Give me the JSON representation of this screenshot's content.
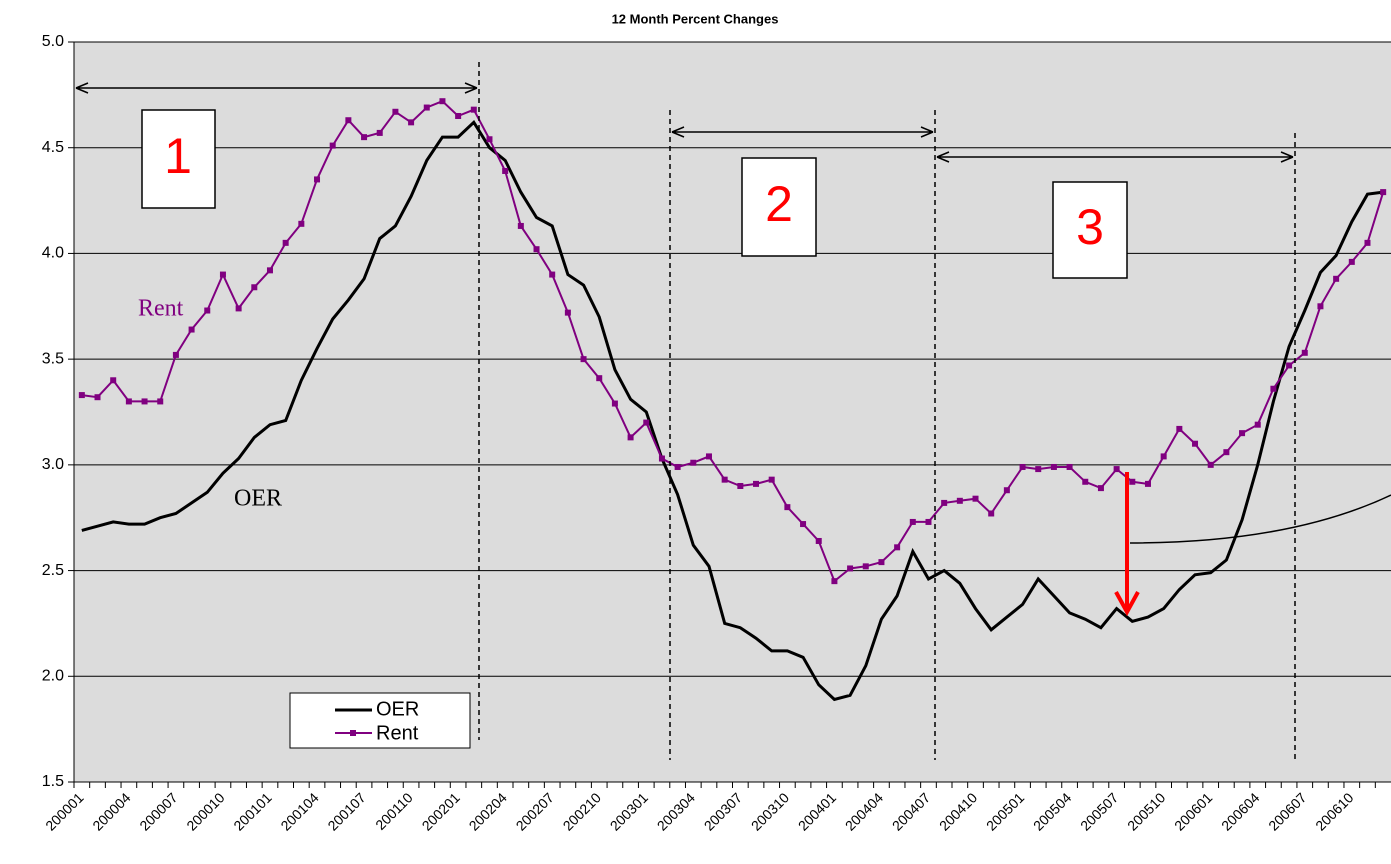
{
  "chart_data": {
    "type": "line",
    "title": "12 Month Percent Changes",
    "categories": [
      "200001",
      null,
      null,
      "200004",
      null,
      null,
      "200007",
      null,
      null,
      "200010",
      null,
      null,
      "200101",
      null,
      null,
      "200104",
      null,
      null,
      "200107",
      null,
      null,
      "200110",
      null,
      null,
      "200201",
      null,
      null,
      "200204",
      null,
      null,
      "200207",
      null,
      null,
      "200210",
      null,
      null,
      "200301",
      null,
      null,
      "200304",
      null,
      null,
      "200307",
      null,
      null,
      "200310",
      null,
      null,
      "200401",
      null,
      null,
      "200404",
      null,
      null,
      "200407",
      null,
      null,
      "200410",
      null,
      null,
      "200501",
      null,
      null,
      "200504",
      null,
      null,
      "200507",
      null,
      null,
      "200510",
      null,
      null,
      "200601",
      null,
      null,
      "200604",
      null,
      null,
      "200607",
      null,
      null,
      "200610",
      null,
      null
    ],
    "series": [
      {
        "name": "OER",
        "color": "#000000",
        "values": [
          2.69,
          2.71,
          2.73,
          2.72,
          2.72,
          2.75,
          2.77,
          2.82,
          2.87,
          2.96,
          3.03,
          3.13,
          3.19,
          3.21,
          3.4,
          3.55,
          3.69,
          3.78,
          3.88,
          4.07,
          4.13,
          4.27,
          4.44,
          4.55,
          4.55,
          4.62,
          4.5,
          4.44,
          4.29,
          4.17,
          4.13,
          3.9,
          3.85,
          3.7,
          3.45,
          3.31,
          3.25,
          3.03,
          2.86,
          2.62,
          2.52,
          2.25,
          2.23,
          2.18,
          2.12,
          2.12,
          2.09,
          1.96,
          1.89,
          1.91,
          2.05,
          2.27,
          2.38,
          2.59,
          2.46,
          2.5,
          2.44,
          2.32,
          2.22,
          2.28,
          2.34,
          2.46,
          2.38,
          2.3,
          2.27,
          2.23,
          2.32,
          2.26,
          2.28,
          2.32,
          2.41,
          2.48,
          2.49,
          2.55,
          2.74,
          3.0,
          3.3,
          3.56,
          3.73,
          3.91,
          3.99,
          4.15,
          4.28,
          4.29
        ]
      },
      {
        "name": "Rent",
        "color": "#800080",
        "values": [
          3.33,
          3.32,
          3.4,
          3.3,
          3.3,
          3.3,
          3.52,
          3.64,
          3.73,
          3.9,
          3.74,
          3.84,
          3.92,
          4.05,
          4.14,
          4.35,
          4.51,
          4.63,
          4.55,
          4.57,
          4.67,
          4.62,
          4.69,
          4.72,
          4.65,
          4.68,
          4.54,
          4.39,
          4.13,
          4.02,
          3.9,
          3.72,
          3.5,
          3.41,
          3.29,
          3.13,
          3.2,
          3.03,
          2.99,
          3.01,
          3.04,
          2.93,
          2.9,
          2.91,
          2.93,
          2.8,
          2.72,
          2.64,
          2.45,
          2.51,
          2.52,
          2.54,
          2.61,
          2.73,
          2.73,
          2.82,
          2.83,
          2.84,
          2.77,
          2.88,
          2.99,
          2.98,
          2.99,
          2.99,
          2.92,
          2.89,
          2.98,
          2.92,
          2.91,
          3.04,
          3.17,
          3.1,
          3.0,
          3.06,
          3.15,
          3.19,
          3.36,
          3.47,
          3.53,
          3.75,
          3.88,
          3.96,
          4.05,
          4.29
        ]
      }
    ],
    "ylim": [
      1.5,
      5.0
    ],
    "yticks": [
      1.5,
      {
        "value": 2,
        "label": "2.0"
      },
      2.5,
      {
        "value": 3,
        "label": "3.0"
      },
      3.5,
      {
        "value": 4,
        "label": "4.0"
      },
      4.5,
      {
        "value": 5,
        "label": "5.0"
      }
    ],
    "grid": true,
    "annotations": [
      "1",
      "2",
      "3",
      "Rent",
      "OER"
    ]
  }
}
